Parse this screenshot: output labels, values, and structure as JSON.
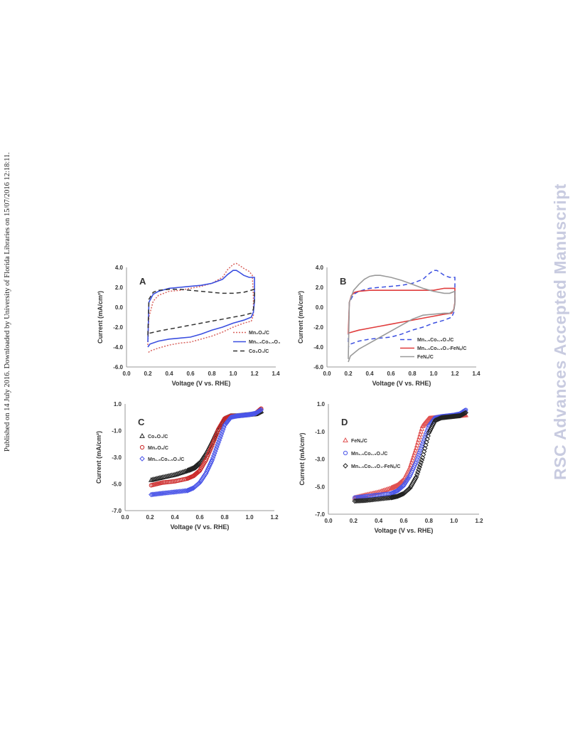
{
  "header": {
    "side_note": "Published on 14 July 2016. Downloaded by University of Florida Libraries on 15/07/2016 12:18:11.",
    "watermark": "RSC Advances Accepted Manuscript"
  },
  "chart_data": [
    {
      "panel": "A",
      "type": "line",
      "xlabel": "Voltage (V vs. RHE)",
      "ylabel": "Current (mA/cm²)",
      "xlim": [
        0.0,
        1.4
      ],
      "ylim": [
        -6.0,
        4.0
      ],
      "xticks": [
        "0.0",
        "0.2",
        "0.4",
        "0.6",
        "0.8",
        "1.0",
        "1.2",
        "1.4"
      ],
      "yticks": [
        "4.0",
        "2.0",
        "0.0",
        "-2.0",
        "-4.0",
        "-6.0"
      ],
      "legend_position": "bottom-right",
      "series": [
        {
          "name": "Mn₂O₃/C",
          "color": "#d9645f",
          "style": "dotted",
          "x": [
            0.2,
            0.21,
            0.25,
            0.3,
            0.4,
            0.5,
            0.6,
            0.7,
            0.8,
            0.9,
            0.95,
            1.0,
            1.03,
            1.06,
            1.1,
            1.15,
            1.18,
            1.19,
            1.19,
            1.17,
            1.1,
            1.0,
            0.9,
            0.8,
            0.7,
            0.6,
            0.5,
            0.4,
            0.3,
            0.22,
            0.2
          ],
          "y": [
            -3.8,
            -1.0,
            0.6,
            1.2,
            1.6,
            1.7,
            1.9,
            2.1,
            2.4,
            3.0,
            3.8,
            4.3,
            4.4,
            4.2,
            3.9,
            3.6,
            3.2,
            1.0,
            -0.8,
            -1.4,
            -1.6,
            -2.0,
            -2.5,
            -2.9,
            -3.2,
            -3.5,
            -3.6,
            -3.8,
            -4.1,
            -4.4,
            -4.6
          ]
        },
        {
          "name": "Mn₁.₅Co₁.₅O₄",
          "color": "#3b4fe0",
          "style": "solid",
          "x": [
            0.2,
            0.21,
            0.25,
            0.3,
            0.4,
            0.5,
            0.6,
            0.7,
            0.8,
            0.9,
            0.95,
            1.0,
            1.03,
            1.06,
            1.1,
            1.15,
            1.2,
            1.2,
            1.19,
            1.17,
            1.1,
            1.0,
            0.9,
            0.8,
            0.7,
            0.6,
            0.5,
            0.4,
            0.3,
            0.22,
            0.2
          ],
          "y": [
            -3.5,
            0.5,
            1.3,
            1.6,
            1.9,
            2.0,
            2.1,
            2.2,
            2.4,
            2.8,
            3.3,
            3.7,
            3.7,
            3.5,
            3.2,
            3.0,
            3.0,
            0.6,
            -0.5,
            -1.0,
            -1.3,
            -1.6,
            -2.0,
            -2.3,
            -2.7,
            -3.0,
            -3.1,
            -3.2,
            -3.4,
            -3.7,
            -4.0
          ]
        },
        {
          "name": "Co₃O₄/C",
          "color": "#333333",
          "style": "dashed",
          "x": [
            0.2,
            0.21,
            0.25,
            0.3,
            0.4,
            0.5,
            0.6,
            0.7,
            0.8,
            0.9,
            1.0,
            1.1,
            1.2,
            1.2,
            1.19,
            1.17,
            1.1,
            1.0,
            0.9,
            0.8,
            0.7,
            0.6,
            0.5,
            0.4,
            0.3,
            0.22,
            0.2
          ],
          "y": [
            -2.8,
            0.8,
            1.5,
            1.7,
            1.8,
            1.8,
            1.7,
            1.6,
            1.5,
            1.4,
            1.4,
            1.5,
            1.8,
            0.8,
            -0.2,
            -0.6,
            -0.8,
            -1.0,
            -1.2,
            -1.4,
            -1.6,
            -1.8,
            -2.0,
            -2.2,
            -2.4,
            -2.6,
            -2.9
          ]
        }
      ]
    },
    {
      "panel": "B",
      "type": "line",
      "xlabel": "Voltage (V vs. RHE)",
      "ylabel": "Current (mA/cm²)",
      "xlim": [
        0.0,
        1.4
      ],
      "ylim": [
        -6.0,
        4.0
      ],
      "xticks": [
        "0.0",
        "0.2",
        "0.4",
        "0.6",
        "0.8",
        "1.0",
        "1.2",
        "1.4"
      ],
      "yticks": [
        "4.0",
        "2.0",
        "0.0",
        "-2.0",
        "-4.0",
        "-6.0"
      ],
      "legend_position": "bottom-right",
      "series": [
        {
          "name": "Mn₁.₅Co₁.₅O₄/C",
          "color": "#3b4fe0",
          "style": "dashed",
          "x": [
            0.2,
            0.21,
            0.25,
            0.3,
            0.4,
            0.5,
            0.6,
            0.7,
            0.8,
            0.9,
            0.95,
            1.0,
            1.03,
            1.06,
            1.1,
            1.15,
            1.2,
            1.2,
            1.19,
            1.17,
            1.1,
            1.0,
            0.9,
            0.8,
            0.7,
            0.6,
            0.5,
            0.4,
            0.3,
            0.22,
            0.2
          ],
          "y": [
            -3.5,
            0.5,
            1.3,
            1.6,
            1.9,
            2.0,
            2.1,
            2.2,
            2.4,
            2.8,
            3.3,
            3.7,
            3.7,
            3.5,
            3.2,
            3.0,
            3.0,
            0.6,
            -0.5,
            -1.0,
            -1.3,
            -1.6,
            -2.0,
            -2.3,
            -2.7,
            -3.0,
            -3.1,
            -3.2,
            -3.4,
            -3.7,
            -4.0
          ]
        },
        {
          "name": "Mn₁.₅Co₁.₅O₄-FeNₓ/C",
          "color": "#e03c3c",
          "style": "solid",
          "x": [
            0.2,
            0.21,
            0.23,
            0.26,
            0.3,
            0.4,
            0.5,
            0.6,
            0.7,
            0.8,
            0.9,
            1.0,
            1.1,
            1.2,
            1.2,
            1.19,
            1.17,
            1.1,
            1.0,
            0.9,
            0.8,
            0.7,
            0.6,
            0.5,
            0.4,
            0.3,
            0.2
          ],
          "y": [
            -2.7,
            0.5,
            1.2,
            1.5,
            1.6,
            1.7,
            1.7,
            1.7,
            1.7,
            1.7,
            1.7,
            1.7,
            1.9,
            1.9,
            0.5,
            -0.2,
            -0.6,
            -0.7,
            -0.9,
            -1.1,
            -1.3,
            -1.5,
            -1.7,
            -1.9,
            -2.1,
            -2.3,
            -2.6
          ]
        },
        {
          "name": "FeNₓ/C",
          "color": "#9a9a9a",
          "style": "solid",
          "x": [
            0.2,
            0.21,
            0.25,
            0.3,
            0.35,
            0.4,
            0.45,
            0.5,
            0.55,
            0.6,
            0.7,
            0.8,
            0.9,
            1.0,
            1.1,
            1.15,
            1.2,
            1.2,
            1.19,
            1.15,
            1.1,
            1.0,
            0.9,
            0.8,
            0.7,
            0.6,
            0.5,
            0.4,
            0.3,
            0.22,
            0.2
          ],
          "y": [
            -5.2,
            0.5,
            1.7,
            2.3,
            2.8,
            3.1,
            3.2,
            3.2,
            3.1,
            3.0,
            2.7,
            2.3,
            1.9,
            1.6,
            1.4,
            1.4,
            1.6,
            0.3,
            -0.3,
            -0.6,
            -0.6,
            -0.7,
            -0.8,
            -1.2,
            -1.8,
            -2.4,
            -3.0,
            -3.6,
            -4.2,
            -4.9,
            -5.5
          ]
        }
      ]
    },
    {
      "panel": "C",
      "type": "scatter",
      "xlabel": "Voltage (V vs. RHE)",
      "ylabel": "Current (mA/cm²)",
      "xlim": [
        0.0,
        1.2
      ],
      "ylim": [
        -7.0,
        1.0
      ],
      "xticks": [
        "0.0",
        "0.2",
        "0.4",
        "0.6",
        "0.8",
        "1.0",
        "1.2"
      ],
      "yticks": [
        "1.0",
        "-1.0",
        "-3.0",
        "-5.0",
        "-7.0"
      ],
      "legend_position": "top-left",
      "series": [
        {
          "name": "Co₃O₄/C",
          "color": "#222222",
          "marker": "triangle",
          "x": [
            0.21,
            0.3,
            0.4,
            0.5,
            0.55,
            0.6,
            0.65,
            0.7,
            0.75,
            0.8,
            0.85,
            0.9,
            0.95,
            1.0,
            1.05,
            1.1
          ],
          "y": [
            -4.7,
            -4.5,
            -4.3,
            -4.0,
            -3.8,
            -3.4,
            -2.7,
            -1.8,
            -0.8,
            -0.1,
            0.1,
            0.1,
            0.15,
            0.2,
            0.25,
            0.5
          ]
        },
        {
          "name": "Mn₂O₃/C",
          "color": "#cc2a2a",
          "marker": "circle",
          "x": [
            0.21,
            0.3,
            0.4,
            0.5,
            0.55,
            0.6,
            0.65,
            0.7,
            0.75,
            0.8,
            0.85,
            0.9,
            0.95,
            1.0,
            1.05,
            1.1
          ],
          "y": [
            -5.1,
            -4.9,
            -4.8,
            -4.6,
            -4.4,
            -4.0,
            -3.2,
            -2.1,
            -0.9,
            -0.1,
            0.1,
            0.1,
            0.15,
            0.2,
            0.3,
            0.7
          ]
        },
        {
          "name": "Mn₁.₅Co₁.₅O₄/C",
          "color": "#4a55e8",
          "marker": "diamond",
          "x": [
            0.21,
            0.3,
            0.4,
            0.5,
            0.55,
            0.6,
            0.65,
            0.7,
            0.75,
            0.8,
            0.85,
            0.9,
            0.95,
            1.0,
            1.05,
            1.1
          ],
          "y": [
            -5.8,
            -5.7,
            -5.6,
            -5.5,
            -5.3,
            -4.9,
            -4.2,
            -3.2,
            -1.9,
            -0.6,
            0.0,
            0.1,
            0.15,
            0.2,
            0.3,
            0.6
          ]
        }
      ]
    },
    {
      "panel": "D",
      "type": "scatter",
      "xlabel": "Voltage (V vs. RHE)",
      "ylabel": "Current (mA/cm²)",
      "xlim": [
        0.0,
        1.2
      ],
      "ylim": [
        -7.0,
        1.0
      ],
      "xticks": [
        "0.0",
        "0.2",
        "0.4",
        "0.6",
        "0.8",
        "1.0",
        "1.2"
      ],
      "yticks": [
        "1.0",
        "-1.0",
        "-3.0",
        "-5.0",
        "-7.0"
      ],
      "legend_position": "top-left",
      "series": [
        {
          "name": "FeNₓ/C",
          "color": "#e05050",
          "marker": "triangle",
          "x": [
            0.21,
            0.3,
            0.4,
            0.5,
            0.55,
            0.6,
            0.65,
            0.7,
            0.75,
            0.8,
            0.85,
            0.9,
            0.95,
            1.0,
            1.05,
            1.1
          ],
          "y": [
            -5.8,
            -5.6,
            -5.4,
            -5.1,
            -4.9,
            -4.5,
            -3.6,
            -2.2,
            -0.6,
            -0.05,
            0.0,
            0.05,
            0.05,
            0.1,
            0.15,
            0.2
          ]
        },
        {
          "name": "Mn₁.₅Co₁.₅O₄/C",
          "color": "#4a55e8",
          "marker": "circle",
          "x": [
            0.21,
            0.3,
            0.4,
            0.5,
            0.55,
            0.6,
            0.65,
            0.7,
            0.75,
            0.8,
            0.85,
            0.9,
            0.95,
            1.0,
            1.05,
            1.1
          ],
          "y": [
            -5.8,
            -5.7,
            -5.6,
            -5.5,
            -5.3,
            -4.9,
            -4.2,
            -3.2,
            -1.9,
            -0.6,
            0.0,
            0.1,
            0.15,
            0.2,
            0.3,
            0.6
          ]
        },
        {
          "name": "Mn₁.₅Co₁.₅O₄-FeNₓ/C",
          "color": "#222222",
          "marker": "diamond",
          "x": [
            0.21,
            0.3,
            0.4,
            0.5,
            0.55,
            0.6,
            0.65,
            0.7,
            0.75,
            0.8,
            0.85,
            0.9,
            0.95,
            1.0,
            1.05,
            1.1
          ],
          "y": [
            -6.05,
            -6.0,
            -5.9,
            -5.8,
            -5.7,
            -5.5,
            -5.1,
            -4.3,
            -2.9,
            -1.1,
            -0.2,
            0.0,
            0.05,
            0.1,
            0.15,
            0.4
          ]
        }
      ]
    }
  ]
}
